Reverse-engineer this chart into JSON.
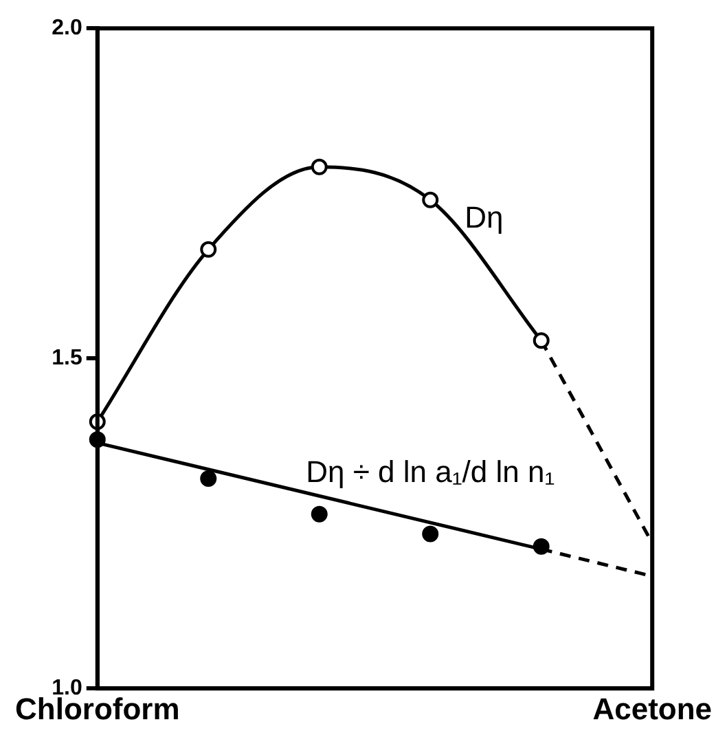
{
  "chart_data": {
    "type": "line",
    "categories": [
      "Chloroform",
      null,
      null,
      null,
      null,
      null,
      null,
      null,
      null,
      null,
      null,
      null,
      null,
      null,
      null,
      null,
      null,
      null,
      null,
      null,
      "Acetone"
    ],
    "series": [
      {
        "name": "Dη",
        "color": "#000000",
        "marker": "circle",
        "values": [
          1.404,
          null,
          null,
          null,
          1.665,
          null,
          null,
          null,
          1.79,
          null,
          null,
          null,
          1.74,
          null,
          null,
          null,
          1.527,
          null,
          null,
          null,
          null
        ]
      },
      {
        "color": "#000000",
        "marker": "none",
        "line_style": "dashed",
        "values": [
          null,
          null,
          null,
          null,
          null,
          null,
          null,
          null,
          null,
          null,
          null,
          null,
          null,
          null,
          null,
          null,
          1.527,
          null,
          null,
          null,
          1.22
        ]
      },
      {
        "name": "Dη ÷ d ln a₁/d ln n₁",
        "type": "scatter",
        "color": "#000000",
        "marker": "circle",
        "values": [
          1.377,
          null,
          null,
          null,
          1.318,
          null,
          null,
          null,
          1.264,
          null,
          null,
          null,
          1.234,
          null,
          null,
          null,
          1.215,
          null,
          null,
          null,
          null
        ]
      },
      {
        "color": "#000000",
        "marker": "none",
        "values": [
          1.372,
          null,
          null,
          null,
          null,
          null,
          null,
          null,
          null,
          null,
          null,
          null,
          null,
          null,
          null,
          null,
          1.211,
          null,
          null,
          null,
          null
        ]
      },
      {
        "color": "#000000",
        "marker": "none",
        "line_style": "dashed",
        "values": [
          null,
          null,
          null,
          null,
          null,
          null,
          null,
          null,
          null,
          null,
          null,
          null,
          null,
          null,
          null,
          null,
          1.211,
          null,
          null,
          null,
          1.17
        ]
      }
    ],
    "ylim": [
      1,
      2
    ],
    "yticks": [
      {
        "value": 1,
        "label": "1.0"
      },
      {
        "value": 1.5,
        "label": "1.5"
      },
      {
        "value": 2,
        "label": "2.0"
      }
    ],
    "grid": false,
    "legend": false
  }
}
